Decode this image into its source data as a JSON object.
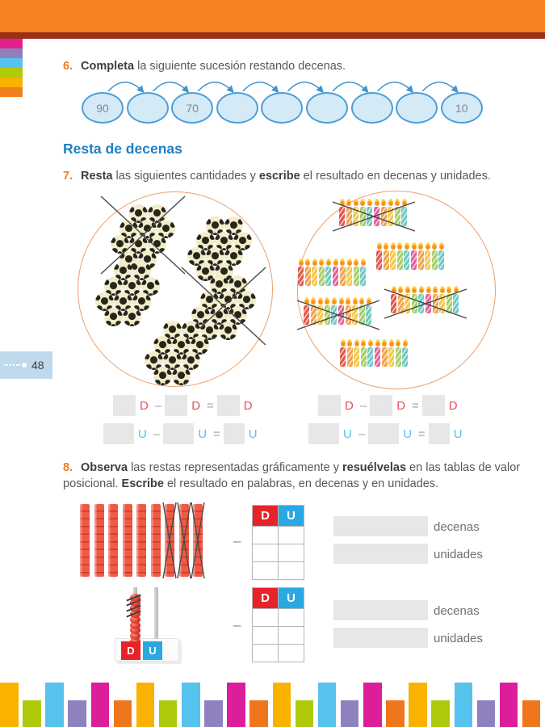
{
  "page_tab": {
    "number": "48"
  },
  "section_title": "Resta de decenas",
  "ex6": {
    "number": "6.",
    "bold1": "Completa",
    "text1": " la siguiente sucesión restando decenas.",
    "sequence": [
      "90",
      "",
      "70",
      "",
      "",
      "",
      "",
      "",
      "10"
    ]
  },
  "ex7": {
    "number": "7.",
    "bold1": "Resta",
    "text1": " las siguientes cantidades y ",
    "bold2": "escribe",
    "text2": " el resultado en decenas y unidades."
  },
  "ex8": {
    "number": "8.",
    "bold1": "Observa",
    "text1": " las restas representadas gráficamente y ",
    "bold2": "resuélvelas",
    "text2": " en las tablas de valor posicional. ",
    "bold3": "Escribe",
    "text3": " el resultado en palabras, en decenas y en unidades."
  },
  "equation": {
    "d_label": "D",
    "u_label": "U",
    "minus": "–",
    "equals": "="
  },
  "du_table": {
    "d_header": "D",
    "u_header": "U"
  },
  "answer_labels": {
    "decenas": "decenas",
    "unidades": "unidades"
  },
  "graphics": {
    "ball_circle": {
      "groups_of_ten": 5,
      "crossed_groups": [
        0,
        3
      ]
    },
    "candle_circle": {
      "groups_of_ten": 6,
      "crossed_groups": [
        0,
        3,
        4
      ],
      "candle_colors": [
        "#E2584C",
        "#F2A14B",
        "#F5C843",
        "#A5CE67",
        "#6FC9C2",
        "#E2609C",
        "#F2A14B",
        "#F5C843",
        "#A5CE67",
        "#6FC9C2"
      ]
    },
    "rods": {
      "count": 9,
      "crossed": [
        6,
        7,
        8
      ]
    },
    "abacus": {
      "d_label": "D",
      "u_label": "U",
      "beads_on_d": 9,
      "crossed_beads": 4
    }
  },
  "colors": {
    "header_orange": "#F5831F",
    "header_stripe": "#9C2F17",
    "title_blue": "#1E80C5",
    "number_orange": "#F07C20",
    "d_red": "#E94F5F",
    "u_blue": "#55C3EF",
    "table_d_red": "#E6232A",
    "table_u_blue": "#29A8E2",
    "oval_fill": "#D5EAF7",
    "oval_border": "#4C9ED8",
    "circle_border": "#EDA06B",
    "page_tab_blue": "#BFD9ED",
    "side_tabs": [
      "#E3208E",
      "#8F80BD",
      "#59C2F0",
      "#AFCB0A",
      "#F9B200",
      "#F0801D"
    ],
    "footer_palette": [
      "#F9B200",
      "#AFCA0B",
      "#56C2EE",
      "#8F81BE",
      "#DC1E9B",
      "#F0761B"
    ]
  }
}
